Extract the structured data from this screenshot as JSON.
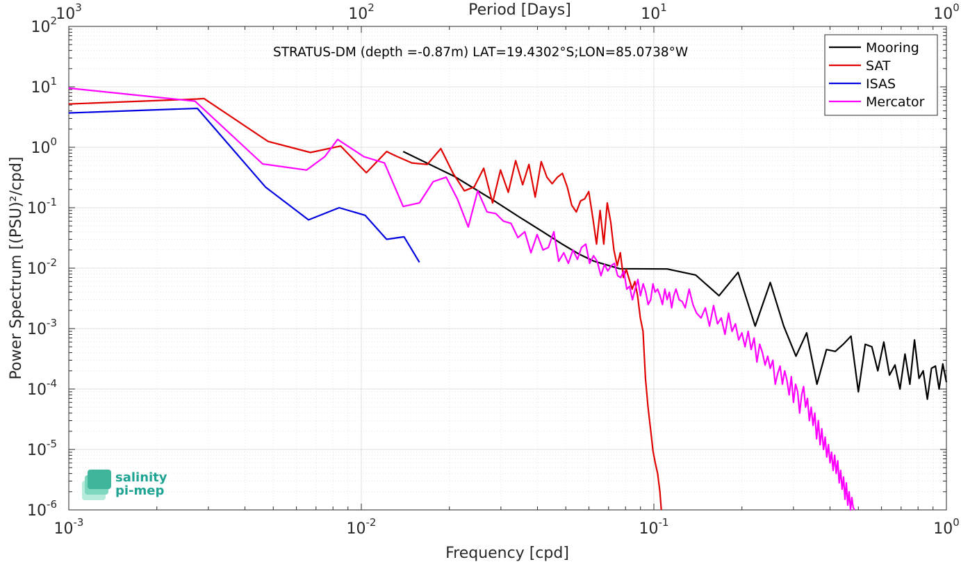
{
  "chart_data": {
    "type": "line",
    "title": "",
    "annotation": "STRATUS-DM (depth =-0.87m) LAT=19.4302°S;LON=85.0738°W",
    "xlabel": "Frequency [cpd]",
    "ylabel": "Power Spectrum [(PSU)²/cpd]",
    "x2label": "Period [Days]",
    "xscale": "log",
    "yscale": "log",
    "xlim": [
      0.001,
      1
    ],
    "ylim": [
      1e-06,
      100
    ],
    "grid": true,
    "legend_position": "top-right",
    "x_ticks": [
      {
        "base": "10",
        "exp": "-3",
        "value": 0.001
      },
      {
        "base": "10",
        "exp": "-2",
        "value": 0.01
      },
      {
        "base": "10",
        "exp": "-1",
        "value": 0.1
      },
      {
        "base": "10",
        "exp": "0",
        "value": 1
      }
    ],
    "x2_ticks": [
      {
        "base": "10",
        "exp": "3",
        "value": 1000
      },
      {
        "base": "10",
        "exp": "2",
        "value": 100
      },
      {
        "base": "10",
        "exp": "1",
        "value": 10
      },
      {
        "base": "10",
        "exp": "0",
        "value": 1
      }
    ],
    "y_ticks": [
      {
        "base": "10",
        "exp": "2",
        "value": 100
      },
      {
        "base": "10",
        "exp": "1",
        "value": 10
      },
      {
        "base": "10",
        "exp": "0",
        "value": 1
      },
      {
        "base": "10",
        "exp": "-1",
        "value": 0.1
      },
      {
        "base": "10",
        "exp": "-2",
        "value": 0.01
      },
      {
        "base": "10",
        "exp": "-3",
        "value": 0.001
      },
      {
        "base": "10",
        "exp": "-4",
        "value": 0.0001
      },
      {
        "base": "10",
        "exp": "-5",
        "value": 1e-05
      },
      {
        "base": "10",
        "exp": "-6",
        "value": 1e-06
      }
    ],
    "series": [
      {
        "name": "Mooring",
        "color": "#000000",
        "x": [
          0.0139,
          0.0208,
          0.0278,
          0.0347,
          0.0417,
          0.0486,
          0.0556,
          0.0625,
          0.0694,
          0.0764,
          0.111,
          0.139,
          0.167,
          0.194,
          0.222,
          0.25,
          0.278,
          0.306,
          0.333,
          0.361,
          0.389,
          0.417,
          0.444,
          0.472,
          0.5,
          0.528,
          0.556,
          0.583,
          0.611,
          0.639,
          0.667,
          0.694,
          0.722,
          0.75,
          0.778,
          0.806,
          0.833,
          0.861,
          0.889,
          0.917,
          0.944,
          0.972,
          1.0
        ],
        "y": [
          0.85,
          0.33,
          0.14,
          0.07,
          0.04,
          0.025,
          0.017,
          0.013,
          0.0112,
          0.0098,
          0.0097,
          0.0077,
          0.0035,
          0.0085,
          0.0011,
          0.0058,
          0.0011,
          0.00035,
          0.00085,
          0.00012,
          0.00045,
          0.00042,
          0.00055,
          0.00075,
          9e-05,
          0.00055,
          0.0005,
          0.0002,
          0.0006,
          0.00017,
          0.00025,
          0.0001,
          0.00038,
          0.00012,
          0.00065,
          0.00015,
          0.0002,
          6.8e-05,
          0.00022,
          0.00024,
          0.0001,
          0.00026,
          0.00013
        ]
      },
      {
        "name": "SAT",
        "color": "#e00000",
        "x": [
          0.001,
          0.00275,
          0.0029,
          0.0048,
          0.0067,
          0.0085,
          0.0104,
          0.0122,
          0.0131,
          0.0149,
          0.0168,
          0.0187,
          0.0206,
          0.0225,
          0.0243,
          0.0262,
          0.0281,
          0.0299,
          0.0318,
          0.0337,
          0.0356,
          0.0374,
          0.0393,
          0.0412,
          0.0431,
          0.0449,
          0.0468,
          0.0487,
          0.0506,
          0.0524,
          0.0543,
          0.0562,
          0.058,
          0.0599,
          0.0618,
          0.0637,
          0.0655,
          0.0674,
          0.0693,
          0.0712,
          0.073,
          0.0749,
          0.0768,
          0.0787,
          0.0805,
          0.0824,
          0.0843,
          0.0861,
          0.088,
          0.0899,
          0.0918,
          0.0936,
          0.0955,
          0.0974,
          0.0993,
          0.1011,
          0.103,
          0.1049,
          0.106
        ],
        "y": [
          5.2,
          6.3,
          6.4,
          1.25,
          0.82,
          1.05,
          0.38,
          0.85,
          0.72,
          0.55,
          0.52,
          0.95,
          0.37,
          0.19,
          0.22,
          0.45,
          0.12,
          0.42,
          0.18,
          0.6,
          0.24,
          0.52,
          0.15,
          0.58,
          0.32,
          0.25,
          0.32,
          0.37,
          0.22,
          0.11,
          0.085,
          0.13,
          0.14,
          0.185,
          0.07,
          0.025,
          0.09,
          0.025,
          0.12,
          0.058,
          0.02,
          0.011,
          0.018,
          0.007,
          0.0095,
          0.0065,
          0.0045,
          0.006,
          0.0035,
          0.0015,
          0.0009,
          0.00015,
          5e-05,
          2.2e-05,
          9.5e-06,
          6e-06,
          4e-06,
          2e-06,
          1e-06
        ]
      },
      {
        "name": "ISAS",
        "color": "#0000e0",
        "x": [
          0.001,
          0.00275,
          0.0047,
          0.0066,
          0.0084,
          0.0103,
          0.0122,
          0.014,
          0.0158
        ],
        "y": [
          3.7,
          4.4,
          0.22,
          0.063,
          0.1,
          0.075,
          0.03,
          0.033,
          0.0125
        ]
      },
      {
        "name": "Mercator",
        "color": "#ff00ff",
        "x": [
          0.001,
          0.0027,
          0.0046,
          0.0065,
          0.0075,
          0.0083,
          0.0102,
          0.012,
          0.0139,
          0.0158,
          0.0176,
          0.0195,
          0.0213,
          0.0232,
          0.025,
          0.0269,
          0.0288,
          0.0306,
          0.0325,
          0.0343,
          0.0362,
          0.038,
          0.0399,
          0.0418,
          0.0436,
          0.0455,
          0.0473,
          0.0492,
          0.051,
          0.0529,
          0.0548,
          0.0566,
          0.0585,
          0.0603,
          0.0622,
          0.064,
          0.0659,
          0.0678,
          0.0696,
          0.0715,
          0.0733,
          0.0752,
          0.077,
          0.0789,
          0.0808,
          0.0826,
          0.0845,
          0.0863,
          0.0882,
          0.09,
          0.0919,
          0.0938,
          0.0956,
          0.0975,
          0.0993,
          0.101,
          0.103,
          0.105,
          0.107,
          0.109,
          0.111,
          0.113,
          0.115,
          0.117,
          0.119,
          0.122,
          0.125,
          0.128,
          0.132,
          0.136,
          0.14,
          0.145,
          0.15,
          0.155,
          0.16,
          0.165,
          0.17,
          0.175,
          0.18,
          0.185,
          0.19,
          0.195,
          0.2,
          0.205,
          0.21,
          0.215,
          0.22,
          0.225,
          0.23,
          0.235,
          0.24,
          0.245,
          0.25,
          0.255,
          0.26,
          0.265,
          0.27,
          0.275,
          0.28,
          0.285,
          0.29,
          0.295,
          0.3,
          0.305,
          0.31,
          0.315,
          0.32,
          0.325,
          0.33,
          0.335,
          0.34,
          0.345,
          0.35,
          0.355,
          0.36,
          0.365,
          0.37,
          0.375,
          0.38,
          0.385,
          0.39,
          0.395,
          0.4,
          0.405,
          0.41,
          0.415,
          0.42,
          0.425,
          0.43,
          0.435,
          0.44,
          0.445,
          0.45,
          0.455,
          0.46,
          0.465,
          0.47,
          0.475,
          0.48,
          0.485
        ],
        "y": [
          9.5,
          5.8,
          0.53,
          0.42,
          0.7,
          1.35,
          0.7,
          0.55,
          0.105,
          0.12,
          0.27,
          0.32,
          0.14,
          0.048,
          0.19,
          0.085,
          0.08,
          0.06,
          0.055,
          0.032,
          0.04,
          0.018,
          0.036,
          0.02,
          0.022,
          0.04,
          0.013,
          0.018,
          0.012,
          0.02,
          0.014,
          0.022,
          0.025,
          0.012,
          0.016,
          0.013,
          0.0075,
          0.0115,
          0.009,
          0.011,
          0.012,
          0.0075,
          0.007,
          0.009,
          0.0045,
          0.005,
          0.003,
          0.0045,
          0.0065,
          0.0035,
          0.0055,
          0.004,
          0.0025,
          0.003,
          0.0055,
          0.004,
          0.0045,
          0.0035,
          0.0025,
          0.0045,
          0.003,
          0.004,
          0.0022,
          0.0035,
          0.0045,
          0.003,
          0.0028,
          0.0022,
          0.0045,
          0.0025,
          0.0018,
          0.0015,
          0.0022,
          0.0011,
          0.0024,
          0.0012,
          0.0015,
          0.0008,
          0.0018,
          0.0009,
          0.0012,
          0.00065,
          0.00085,
          0.0005,
          0.0009,
          0.00045,
          0.0007,
          0.00028,
          0.00055,
          0.0004,
          0.00025,
          0.00035,
          0.00022,
          0.0003,
          0.00012,
          0.00018,
          0.00024,
          0.00012,
          0.0002,
          0.00014,
          8e-05,
          0.00016,
          6e-05,
          0.00012,
          9e-05,
          4e-05,
          8e-05,
          0.00011,
          5e-05,
          7e-05,
          3e-05,
          5e-05,
          2.5e-05,
          4e-05,
          1.5e-05,
          3e-05,
          1.2e-05,
          2.2e-05,
          1e-05,
          1.6e-05,
          7.5e-06,
          1.2e-05,
          6e-06,
          9e-06,
          4.5e-06,
          8e-06,
          4e-06,
          6.5e-06,
          2.8e-06,
          4.5e-06,
          2.2e-06,
          3.5e-06,
          1.5e-06,
          2.8e-06,
          1.2e-06,
          2e-06,
          1e-06,
          1.6e-06,
          1.1e-06,
          1e-06
        ]
      }
    ]
  },
  "logo": {
    "line1": "salinity",
    "line2": "pi-mep"
  }
}
